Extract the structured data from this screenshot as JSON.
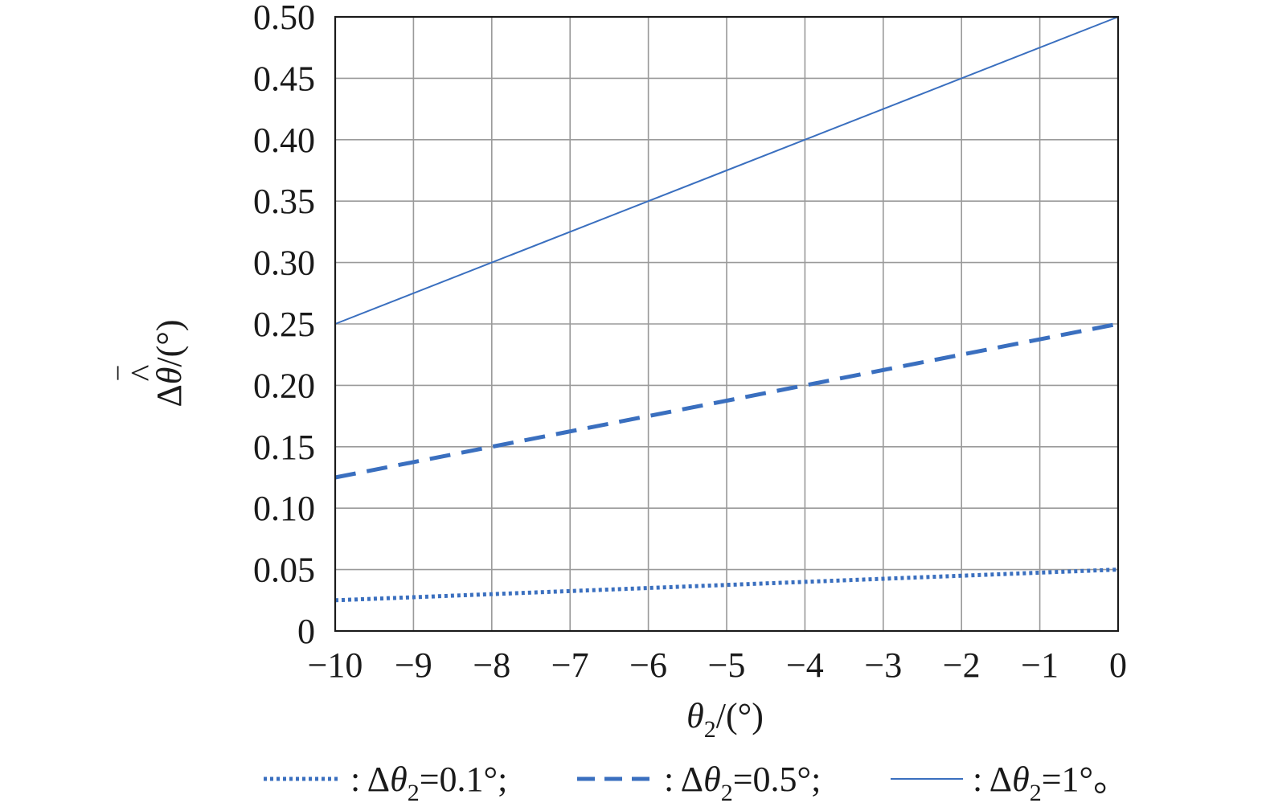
{
  "chart_data": {
    "type": "line",
    "title": "",
    "xlabel": "θ2/(°)",
    "ylabel": "Δθ̄̂/(°)",
    "xlim": [
      -10,
      0
    ],
    "ylim": [
      0,
      0.5
    ],
    "grid": true,
    "legend_position": "bottom",
    "x_ticks": [
      -10,
      -9,
      -8,
      -7,
      -6,
      -5,
      -4,
      -3,
      -2,
      -1,
      0
    ],
    "x_tick_labels": [
      "−10",
      "−9",
      "−8",
      "−7",
      "−6",
      "−5",
      "−4",
      "−3",
      "−2",
      "−1",
      "0"
    ],
    "y_ticks": [
      0,
      0.05,
      0.1,
      0.15,
      0.2,
      0.25,
      0.3,
      0.35,
      0.4,
      0.45,
      0.5
    ],
    "y_tick_labels": [
      "0",
      "0.05",
      "0.10",
      "0.15",
      "0.20",
      "0.25",
      "0.30",
      "0.35",
      "0.40",
      "0.45",
      "0.50"
    ],
    "series": [
      {
        "name": "Δθ2=0.1°",
        "legend_label": ": Δθ2=0.1°;",
        "style": "dotted",
        "color": "#3a6fbf",
        "x": [
          -10,
          0
        ],
        "y": [
          0.025,
          0.05
        ]
      },
      {
        "name": "Δθ2=0.5°",
        "legend_label": ": Δθ2=0.5°;",
        "style": "dashed",
        "color": "#3a6fbf",
        "x": [
          -10,
          0
        ],
        "y": [
          0.125,
          0.25
        ]
      },
      {
        "name": "Δθ2=1°",
        "legend_label": ": Δθ2=1°。",
        "style": "solid",
        "color": "#3a6fbf",
        "x": [
          -10,
          0
        ],
        "y": [
          0.25,
          0.5
        ]
      }
    ]
  }
}
